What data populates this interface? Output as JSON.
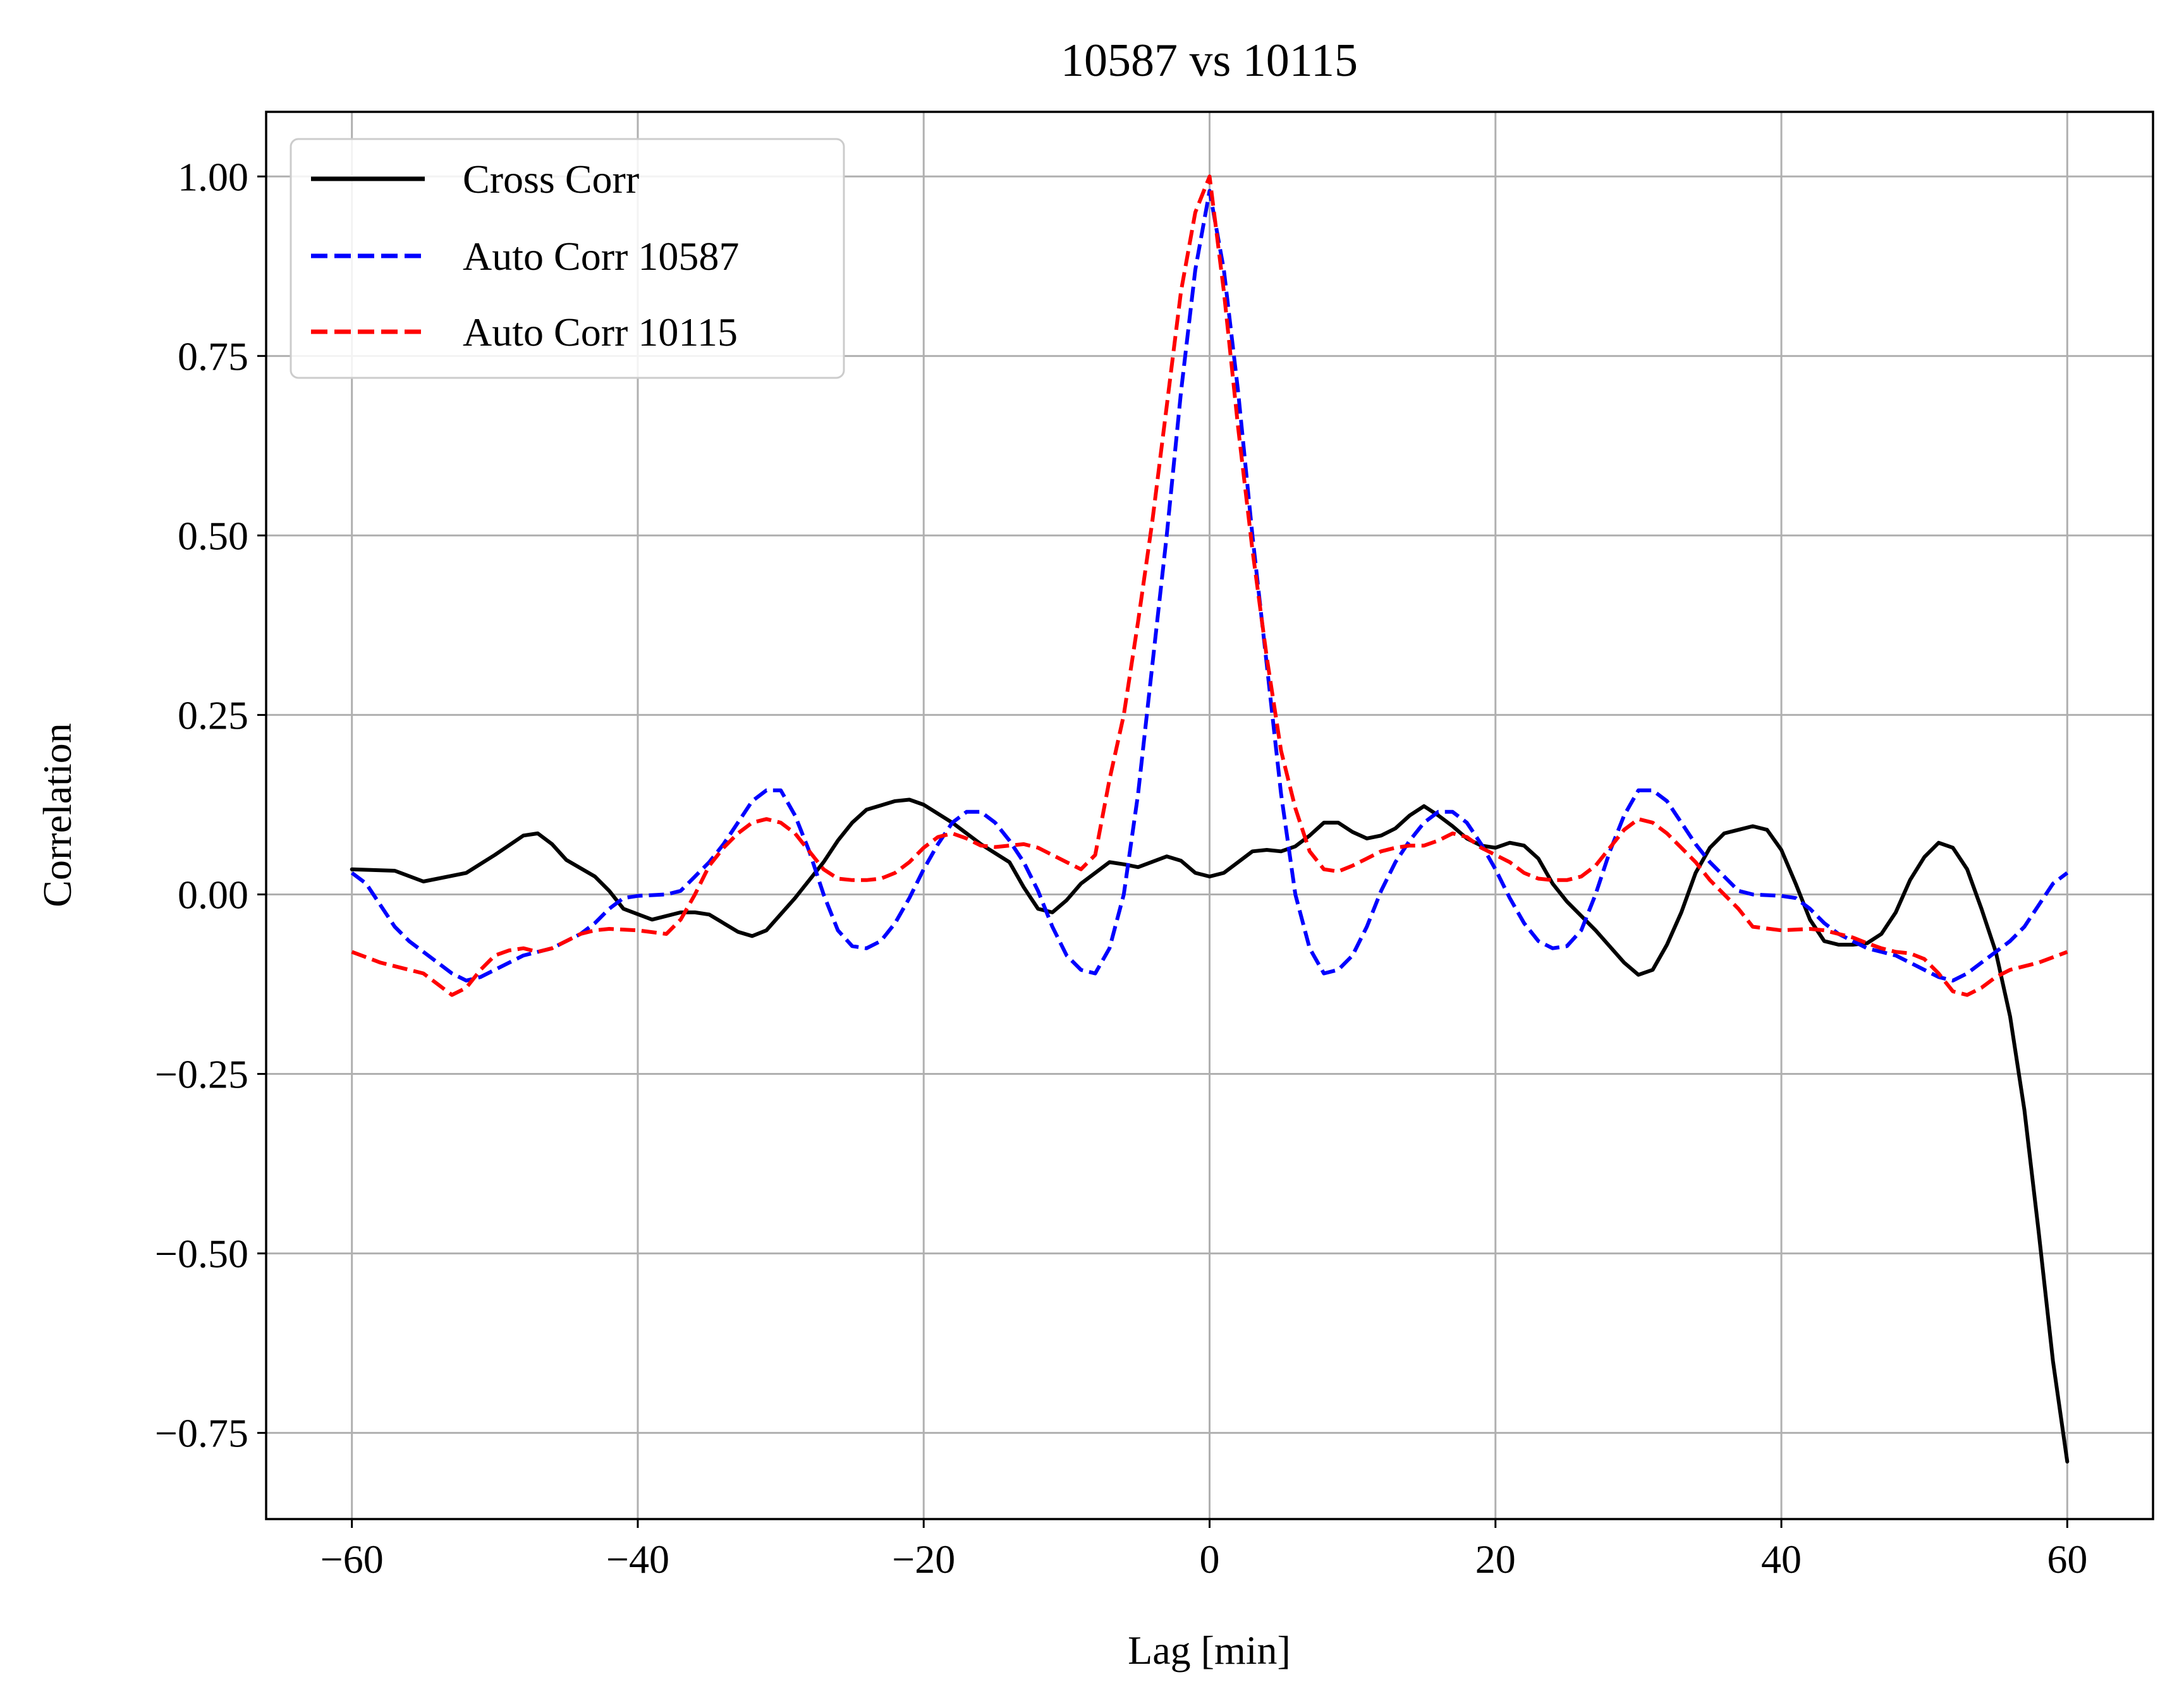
{
  "chart_data": {
    "type": "line",
    "title": "10587 vs 10115",
    "xlabel": "Lag [min]",
    "ylabel": "Correlation",
    "xlim": [
      -66,
      66
    ],
    "ylim": [
      -0.87,
      1.09
    ],
    "xticks": [
      -60,
      -40,
      -20,
      0,
      20,
      40,
      60
    ],
    "xtick_labels": [
      "−60",
      "−40",
      "−20",
      "0",
      "20",
      "40",
      "60"
    ],
    "yticks": [
      1.0,
      0.75,
      0.5,
      0.25,
      0.0,
      -0.25,
      -0.5,
      -0.75
    ],
    "ytick_labels": [
      "1.00",
      "0.75",
      "0.50",
      "0.25",
      "0.00",
      "−0.25",
      "−0.50",
      "−0.75"
    ],
    "grid": true,
    "legend_position": "upper-left",
    "series": [
      {
        "name": "Cross Corr",
        "color": "#000000",
        "dash": "solid",
        "x": [
          -60,
          -57,
          -55,
          -54,
          -52,
          -50,
          -48,
          -47,
          -46,
          -45,
          -43,
          -42,
          -41,
          -39,
          -37,
          -36,
          -35,
          -33,
          -32,
          -31,
          -29,
          -27,
          -26,
          -25,
          -24,
          -22,
          -21,
          -20,
          -18,
          -16,
          -14,
          -13,
          -12,
          -11,
          -10,
          -9,
          -7,
          -6,
          -5,
          -3,
          -2,
          -1,
          0,
          1,
          2,
          3,
          4,
          5,
          6,
          7,
          8,
          9,
          10,
          11,
          12,
          13,
          14,
          15,
          16,
          17,
          18,
          19,
          20,
          21,
          22,
          23,
          24,
          25,
          27,
          29,
          30,
          31,
          32,
          33,
          34,
          35,
          36,
          37,
          38,
          39,
          40,
          41,
          42,
          43,
          44,
          45,
          46,
          47,
          48,
          49,
          50,
          51,
          52,
          53,
          54,
          55,
          56,
          57,
          58,
          59,
          60
        ],
        "y": [
          0.035,
          0.033,
          0.018,
          0.022,
          0.03,
          0.055,
          0.082,
          0.085,
          0.07,
          0.048,
          0.025,
          0.005,
          -0.02,
          -0.035,
          -0.025,
          -0.025,
          -0.028,
          -0.052,
          -0.058,
          -0.05,
          -0.005,
          0.045,
          0.075,
          0.1,
          0.118,
          0.13,
          0.132,
          0.125,
          0.1,
          0.07,
          0.045,
          0.01,
          -0.02,
          -0.025,
          -0.008,
          0.015,
          0.045,
          0.042,
          0.038,
          0.053,
          0.047,
          0.03,
          0.025,
          0.03,
          0.045,
          0.06,
          0.062,
          0.06,
          0.067,
          0.082,
          0.1,
          0.1,
          0.087,
          0.078,
          0.082,
          0.092,
          0.11,
          0.123,
          0.11,
          0.095,
          0.078,
          0.068,
          0.065,
          0.072,
          0.068,
          0.05,
          0.015,
          -0.01,
          -0.05,
          -0.095,
          -0.112,
          -0.105,
          -0.07,
          -0.025,
          0.03,
          0.065,
          0.085,
          0.09,
          0.095,
          0.09,
          0.062,
          0.015,
          -0.035,
          -0.065,
          -0.07,
          -0.07,
          -0.068,
          -0.055,
          -0.025,
          0.02,
          0.052,
          0.072,
          0.065,
          0.035,
          -0.02,
          -0.08,
          -0.17,
          -0.3,
          -0.47,
          -0.65,
          -0.79
        ]
      },
      {
        "name": "Auto Corr 10587",
        "color": "#0000ff",
        "dash": "dashed",
        "x": [
          -60,
          -59,
          -58,
          -57,
          -56,
          -55,
          -54,
          -53,
          -52,
          -51,
          -50,
          -49,
          -48,
          -47,
          -46,
          -45,
          -44,
          -43,
          -42,
          -41,
          -40,
          -39,
          -38,
          -37,
          -36,
          -35,
          -34,
          -33,
          -32,
          -31,
          -30,
          -29,
          -28,
          -27,
          -26,
          -25,
          -24,
          -23,
          -22,
          -21,
          -20,
          -19,
          -18,
          -17,
          -16,
          -15,
          -14,
          -13,
          -12,
          -11,
          -10,
          -9,
          -8,
          -7,
          -6,
          -5,
          -4,
          -3,
          -2,
          -1,
          0,
          1,
          2,
          3,
          4,
          5,
          6,
          7,
          8,
          9,
          10,
          11,
          12,
          13,
          14,
          15,
          16,
          17,
          18,
          19,
          20,
          21,
          22,
          23,
          24,
          25,
          26,
          27,
          28,
          29,
          30,
          31,
          32,
          33,
          34,
          35,
          36,
          37,
          38,
          39,
          40,
          41,
          42,
          43,
          44,
          45,
          46,
          47,
          48,
          49,
          50,
          51,
          52,
          53,
          54,
          55,
          56,
          57,
          58,
          59,
          60
        ],
        "y": [
          0.03,
          0.015,
          -0.015,
          -0.045,
          -0.065,
          -0.08,
          -0.095,
          -0.11,
          -0.12,
          -0.115,
          -0.105,
          -0.095,
          -0.085,
          -0.08,
          -0.075,
          -0.065,
          -0.055,
          -0.04,
          -0.02,
          -0.005,
          -0.002,
          -0.001,
          0.0,
          0.005,
          0.025,
          0.045,
          0.07,
          0.1,
          0.13,
          0.145,
          0.145,
          0.11,
          0.06,
          0.0,
          -0.05,
          -0.072,
          -0.075,
          -0.065,
          -0.04,
          -0.005,
          0.035,
          0.07,
          0.1,
          0.115,
          0.115,
          0.1,
          0.075,
          0.045,
          0.005,
          -0.045,
          -0.085,
          -0.105,
          -0.11,
          -0.075,
          0.0,
          0.14,
          0.32,
          0.5,
          0.7,
          0.87,
          0.98,
          0.87,
          0.7,
          0.5,
          0.32,
          0.14,
          0.0,
          -0.075,
          -0.11,
          -0.105,
          -0.085,
          -0.045,
          0.005,
          0.045,
          0.075,
          0.1,
          0.115,
          0.115,
          0.1,
          0.07,
          0.035,
          -0.005,
          -0.04,
          -0.065,
          -0.075,
          -0.072,
          -0.05,
          0.0,
          0.06,
          0.11,
          0.145,
          0.145,
          0.13,
          0.1,
          0.07,
          0.045,
          0.025,
          0.005,
          0.0,
          -0.001,
          -0.002,
          -0.005,
          -0.02,
          -0.04,
          -0.055,
          -0.065,
          -0.075,
          -0.08,
          -0.085,
          -0.095,
          -0.105,
          -0.115,
          -0.12,
          -0.11,
          -0.095,
          -0.08,
          -0.065,
          -0.045,
          -0.015,
          0.015,
          0.03
        ]
      },
      {
        "name": "Auto Corr 10115",
        "color": "#ff0000",
        "dash": "dashed",
        "x": [
          -60,
          -58,
          -56,
          -55,
          -54,
          -53,
          -52,
          -51,
          -50,
          -49,
          -48,
          -47,
          -46,
          -45,
          -44,
          -43,
          -42,
          -40,
          -38,
          -37,
          -36,
          -35,
          -34,
          -33,
          -32,
          -31,
          -30,
          -29,
          -28,
          -27,
          -26,
          -25,
          -24,
          -23,
          -22,
          -21,
          -20,
          -19,
          -18,
          -17,
          -16,
          -15,
          -14,
          -13,
          -12,
          -11,
          -10,
          -9,
          -8,
          -7,
          -6,
          -5,
          -4,
          -3,
          -2,
          -1,
          0,
          1,
          2,
          3,
          4,
          5,
          6,
          7,
          8,
          9,
          10,
          11,
          12,
          13,
          14,
          15,
          16,
          17,
          18,
          19,
          20,
          21,
          22,
          23,
          24,
          25,
          26,
          27,
          28,
          29,
          30,
          31,
          32,
          33,
          34,
          35,
          36,
          37,
          38,
          40,
          42,
          43,
          44,
          45,
          46,
          47,
          48,
          49,
          50,
          51,
          52,
          53,
          54,
          55,
          56,
          58,
          60
        ],
        "y": [
          -0.08,
          -0.095,
          -0.105,
          -0.11,
          -0.125,
          -0.14,
          -0.13,
          -0.105,
          -0.085,
          -0.078,
          -0.075,
          -0.08,
          -0.075,
          -0.065,
          -0.055,
          -0.05,
          -0.048,
          -0.05,
          -0.055,
          -0.035,
          0.0,
          0.04,
          0.065,
          0.085,
          0.1,
          0.105,
          0.1,
          0.085,
          0.06,
          0.035,
          0.022,
          0.02,
          0.02,
          0.022,
          0.03,
          0.045,
          0.065,
          0.08,
          0.085,
          0.078,
          0.068,
          0.066,
          0.068,
          0.07,
          0.065,
          0.055,
          0.045,
          0.035,
          0.055,
          0.16,
          0.25,
          0.38,
          0.52,
          0.68,
          0.84,
          0.95,
          1.0,
          0.84,
          0.65,
          0.48,
          0.33,
          0.2,
          0.12,
          0.06,
          0.035,
          0.032,
          0.04,
          0.05,
          0.06,
          0.065,
          0.068,
          0.068,
          0.075,
          0.085,
          0.08,
          0.065,
          0.055,
          0.045,
          0.03,
          0.022,
          0.02,
          0.02,
          0.025,
          0.04,
          0.065,
          0.09,
          0.105,
          0.1,
          0.085,
          0.065,
          0.045,
          0.02,
          0.0,
          -0.02,
          -0.045,
          -0.05,
          -0.048,
          -0.05,
          -0.055,
          -0.06,
          -0.068,
          -0.075,
          -0.08,
          -0.082,
          -0.09,
          -0.11,
          -0.135,
          -0.14,
          -0.13,
          -0.115,
          -0.105,
          -0.095,
          -0.08
        ]
      }
    ]
  }
}
